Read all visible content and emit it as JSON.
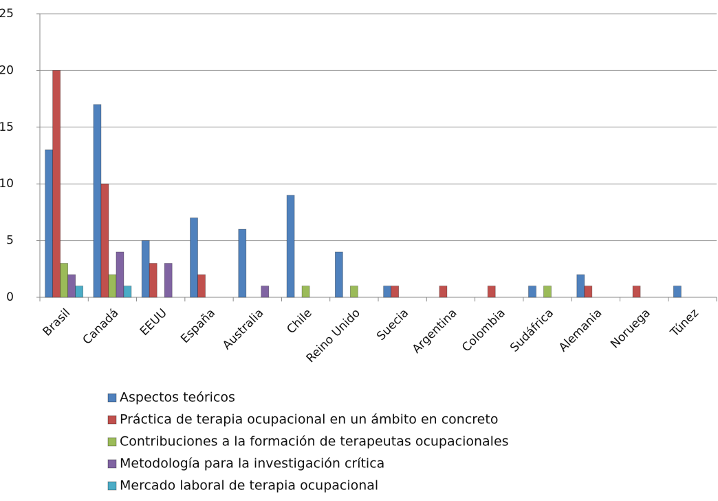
{
  "chart_data": {
    "type": "bar",
    "categories": [
      "Brasil",
      "Canadá",
      "EEUU",
      "España",
      "Australia",
      "Chile",
      "Reino Unido",
      "Suecia",
      "Argentina",
      "Colombia",
      "Sudáfrica",
      "Alemania",
      "Noruega",
      "Túnez"
    ],
    "series": [
      {
        "name": "Aspectos teóricos",
        "color": "#4f81bd",
        "values": [
          13,
          17,
          5,
          7,
          6,
          9,
          4,
          1,
          0,
          0,
          1,
          2,
          0,
          1
        ]
      },
      {
        "name": "Práctica de terapia ocupacional en un ámbito en concreto",
        "color": "#c0504d",
        "values": [
          20,
          10,
          3,
          2,
          0,
          0,
          0,
          1,
          1,
          1,
          0,
          1,
          1,
          0
        ]
      },
      {
        "name": "Contribuciones a la formación de terapeutas ocupacionales",
        "color": "#9bbb59",
        "values": [
          3,
          2,
          0,
          0,
          0,
          1,
          1,
          0,
          0,
          0,
          1,
          0,
          0,
          0
        ]
      },
      {
        "name": "Metodología para la investigación crítica",
        "color": "#8064a2",
        "values": [
          2,
          4,
          3,
          0,
          1,
          0,
          0,
          0,
          0,
          0,
          0,
          0,
          0,
          0
        ]
      },
      {
        "name": "Mercado laboral de terapia ocupacional",
        "color": "#4bacc6",
        "values": [
          1,
          1,
          0,
          0,
          0,
          0,
          0,
          0,
          0,
          0,
          0,
          0,
          0,
          0
        ]
      }
    ],
    "ylim": [
      0,
      25
    ],
    "yticks": [
      0,
      5,
      10,
      15,
      20,
      25
    ],
    "grid": true,
    "legend": "bottom"
  }
}
